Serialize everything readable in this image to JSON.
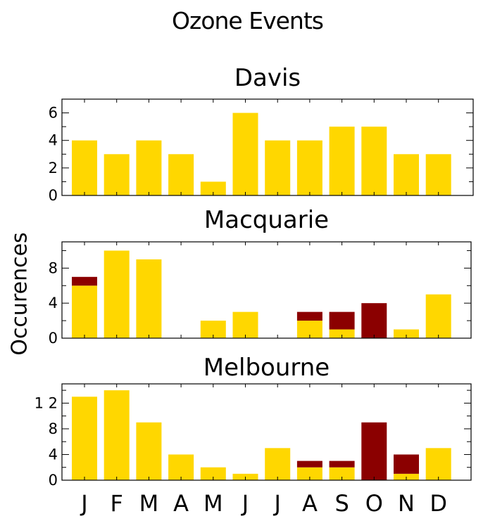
{
  "figure": {
    "title": "Ozone Events",
    "ylabel": "Occurences"
  },
  "colors": {
    "yellow": "#FFD700",
    "dark_red": "#8B0000"
  },
  "chart_data": [
    {
      "type": "bar",
      "title": "Davis",
      "categories": [
        "J",
        "F",
        "M",
        "A",
        "M",
        "J",
        "J",
        "A",
        "S",
        "O",
        "N",
        "D"
      ],
      "ylim": [
        0,
        7
      ],
      "yticks": [
        0,
        2,
        4,
        6
      ],
      "series": [
        {
          "values": [
            4,
            3,
            4,
            3,
            1,
            6,
            4,
            4,
            5,
            5,
            3,
            3
          ]
        },
        {
          "values": [
            0,
            0,
            0,
            0,
            0,
            0,
            0,
            0,
            0,
            0,
            0,
            0
          ]
        }
      ]
    },
    {
      "type": "bar",
      "title": "Macquarie",
      "categories": [
        "J",
        "F",
        "M",
        "A",
        "M",
        "J",
        "J",
        "A",
        "S",
        "O",
        "N",
        "D"
      ],
      "ylim": [
        0,
        11
      ],
      "yticks": [
        0,
        4,
        8
      ],
      "series": [
        {
          "values": [
            6,
            10,
            9,
            0,
            2,
            3,
            0,
            2,
            1,
            0,
            1,
            5
          ]
        },
        {
          "values": [
            1,
            0,
            0,
            0,
            0,
            0,
            0,
            1,
            2,
            4,
            0,
            0
          ]
        }
      ]
    },
    {
      "type": "bar",
      "title": "Melbourne",
      "categories": [
        "J",
        "F",
        "M",
        "A",
        "M",
        "J",
        "J",
        "A",
        "S",
        "O",
        "N",
        "D"
      ],
      "ylim": [
        0,
        15
      ],
      "yticks": [
        0,
        4,
        8,
        12
      ],
      "ytick_labels": [
        "0",
        "4",
        "8",
        "1 2"
      ],
      "series": [
        {
          "values": [
            13,
            14,
            9,
            4,
            2,
            1,
            5,
            2,
            2,
            0,
            1,
            5
          ]
        },
        {
          "values": [
            0,
            0,
            0,
            0,
            0,
            0,
            0,
            1,
            1,
            9,
            3,
            0
          ]
        }
      ]
    }
  ]
}
